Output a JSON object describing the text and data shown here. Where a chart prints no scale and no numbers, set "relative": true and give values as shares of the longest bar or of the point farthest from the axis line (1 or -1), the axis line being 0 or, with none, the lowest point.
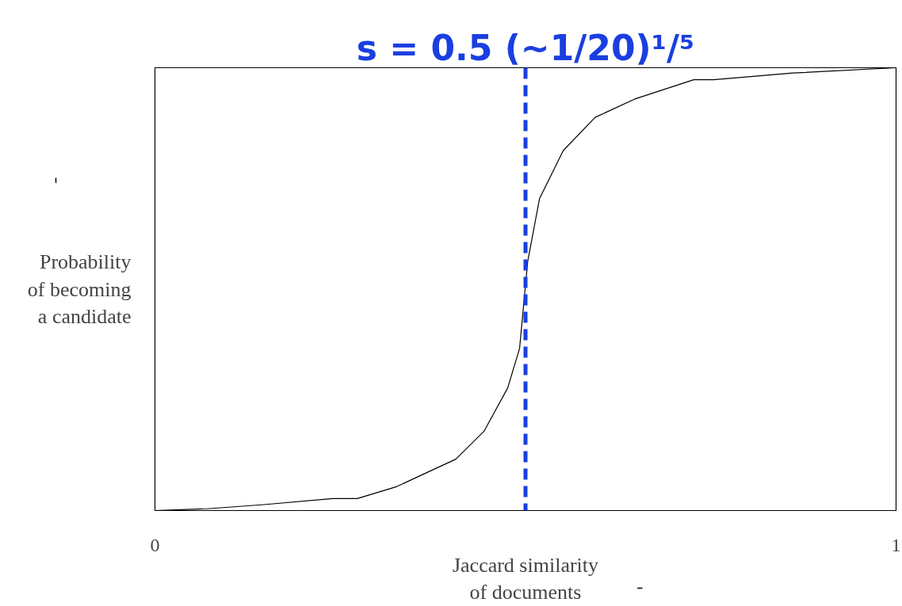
{
  "chart_data": {
    "type": "line",
    "relative": true,
    "xlabel": "Jaccard similarity\nof documents",
    "ylabel": "Probability\nof becoming\na candidate",
    "xlim": [
      0,
      1
    ],
    "xticks": [
      0,
      1
    ],
    "marker": "none",
    "series": [
      {
        "color": "#000000",
        "x": [
          0,
          0.07,
          0.144,
          0.24,
          0.273,
          0.326,
          0.406,
          0.444,
          0.476,
          0.492,
          0.503,
          0.519,
          0.551,
          0.594,
          0.647,
          0.727,
          0.754,
          0.861,
          1
        ],
        "values": [
          0,
          0.004,
          0.013,
          0.027,
          0.027,
          0.054,
          0.116,
          0.179,
          0.277,
          0.366,
          0.563,
          0.705,
          0.813,
          0.888,
          0.929,
          0.973,
          0.973,
          0.988,
          1
        ]
      }
    ],
    "ref_lines": [
      {
        "axis": "x",
        "value": 0.5,
        "label": "s = 0.5 (~1/20)¹/⁵",
        "color": "#1a3fe0",
        "line_style": "dashed"
      }
    ]
  }
}
